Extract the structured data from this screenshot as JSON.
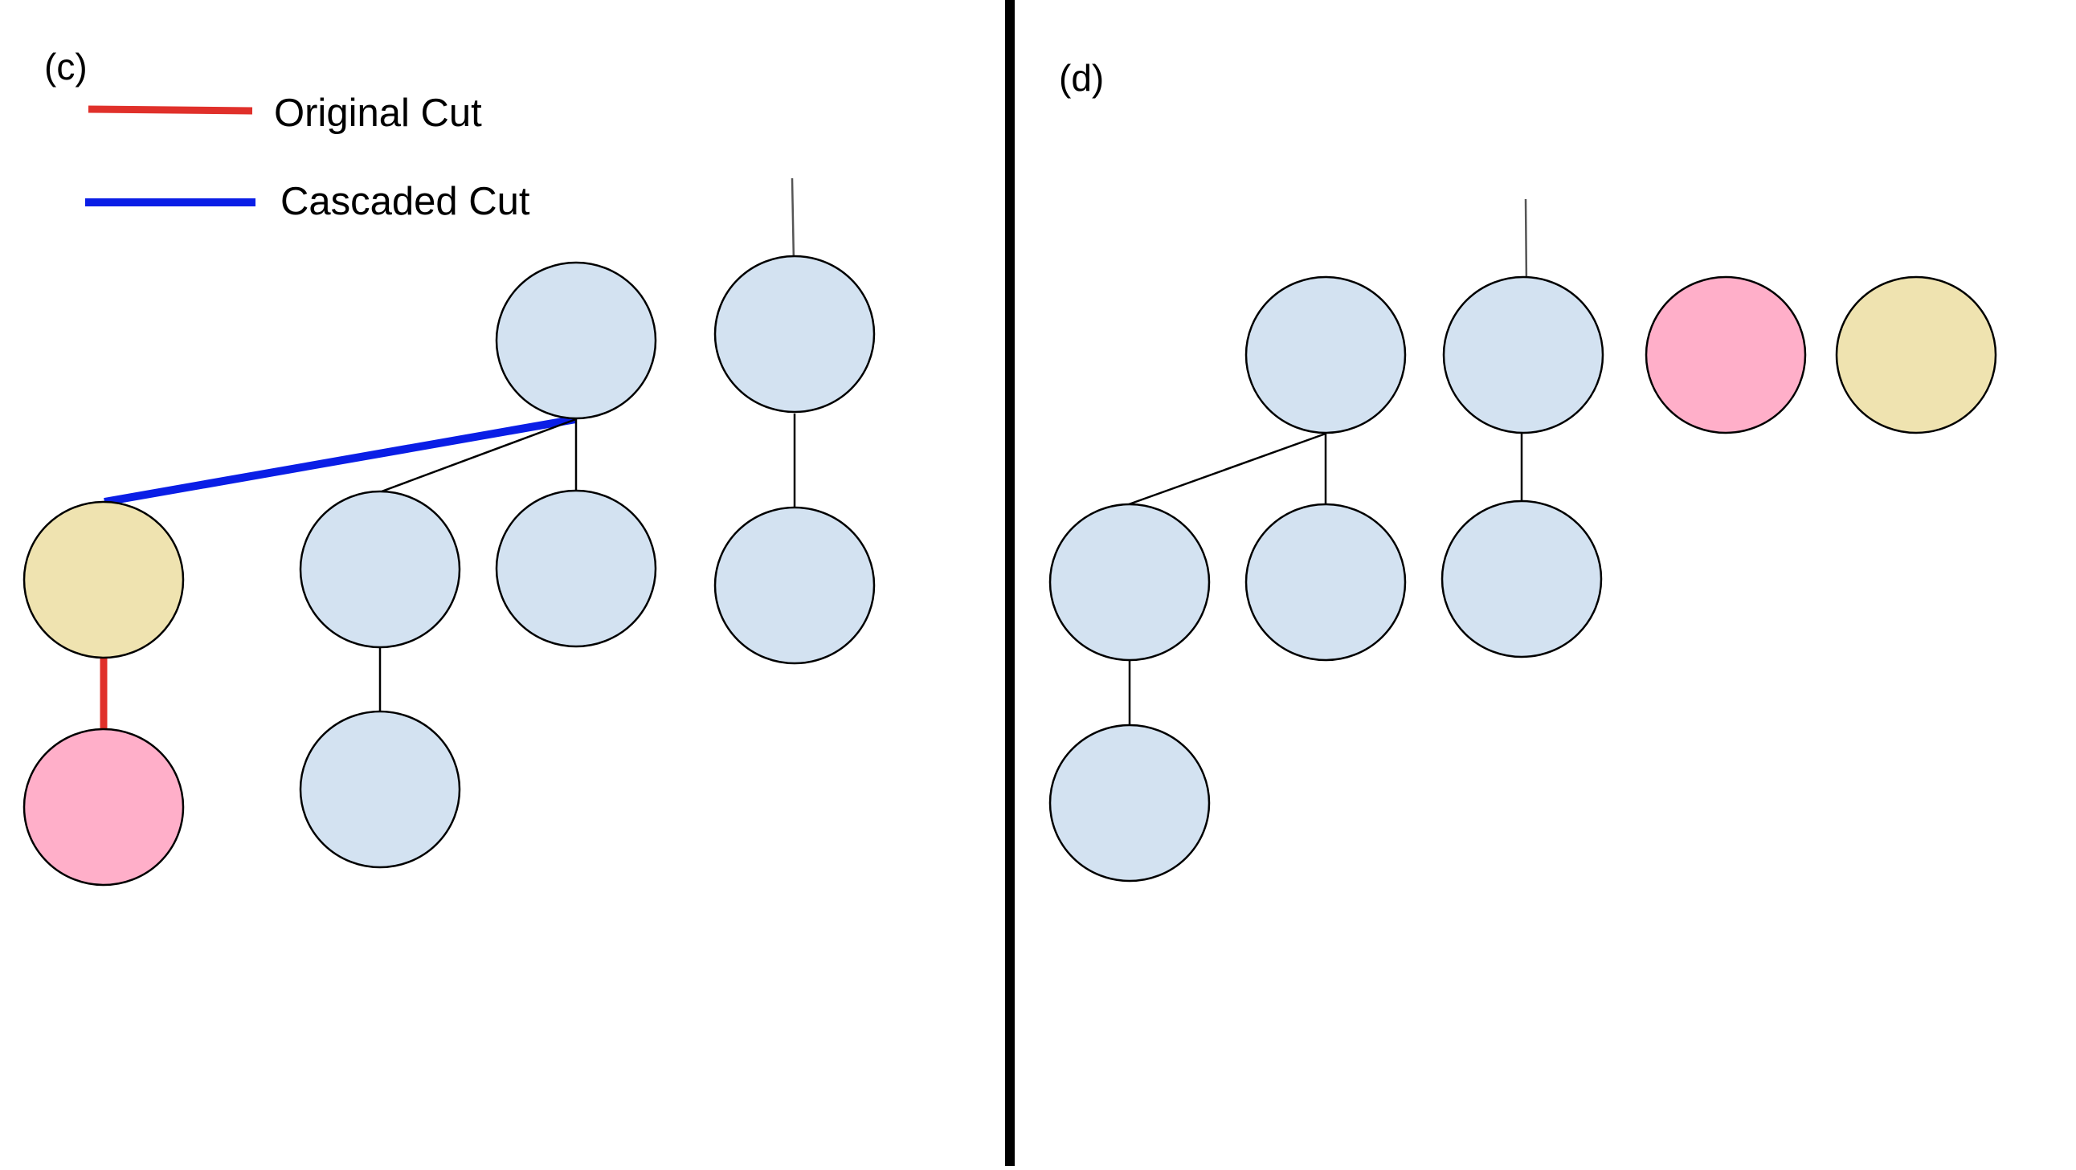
{
  "colors": {
    "node_fill": "#d3e2f1",
    "node_pink": "#ffafc9",
    "node_tan": "#efe3b0",
    "original_cut": "#e0302a",
    "cascaded_cut": "#0a1ee6",
    "divider": "#000000",
    "arrow": "#555555"
  },
  "panels": {
    "left": {
      "label": "(c)"
    },
    "right": {
      "label": "(d)"
    }
  },
  "legend": {
    "items": [
      {
        "label": "Original Cut",
        "color": "#e0302a"
      },
      {
        "label": "Cascaded Cut",
        "color": "#0a1ee6"
      }
    ]
  }
}
